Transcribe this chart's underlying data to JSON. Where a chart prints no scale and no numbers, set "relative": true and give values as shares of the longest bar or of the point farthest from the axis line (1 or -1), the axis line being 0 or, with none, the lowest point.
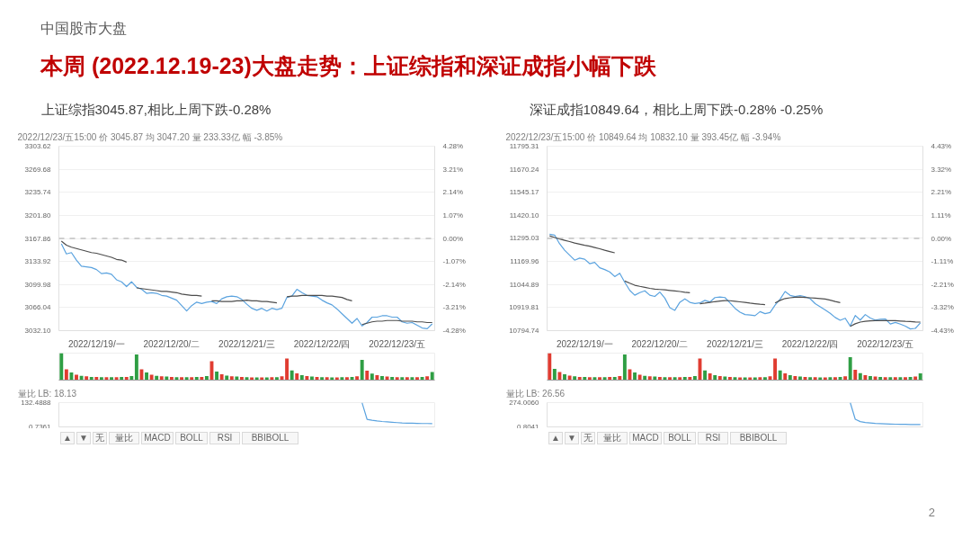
{
  "chart_data": [
    {
      "type": "line",
      "title": "上证综指3045.87,相比上周下跌-0.28%",
      "subtitle": "2022/12/23/五15:00 价 3045.87 均 3047.20 量 233.33亿 幅 -3.85%",
      "annotations": [
        "中国股市大盘",
        "本周 (2022.12.19-23)大盘走势：上证综指和深证成指小幅下跌",
        "2"
      ],
      "categories": [
        null,
        null,
        null,
        null,
        null,
        null,
        null,
        "2022/12/19/一",
        null,
        null,
        null,
        null,
        null,
        null,
        null,
        null,
        null,
        null,
        null,
        null,
        null,
        null,
        "2022/12/20/二",
        null,
        null,
        null,
        null,
        null,
        null,
        null,
        null,
        null,
        null,
        null,
        null,
        null,
        null,
        "2022/12/21/三",
        null,
        null,
        null,
        null,
        null,
        null,
        null,
        null,
        null,
        null,
        null,
        null,
        null,
        null,
        "2022/12/22/四",
        null,
        null,
        null,
        null,
        null,
        null,
        null,
        null,
        null,
        null,
        null,
        null,
        null,
        null,
        "2022/12/23/五",
        null,
        null,
        null,
        null,
        null,
        null,
        null
      ],
      "ylim": [
        3032.1,
        3303.62
      ],
      "yticks": [
        3303.62,
        3269.68,
        3235.74,
        {
          "value": 3201.8,
          "label": "3201.80"
        },
        3167.86,
        3133.92,
        3099.98,
        3066.04,
        {
          "value": 3032.1,
          "label": "3032.10"
        }
      ],
      "y2lim": [
        -4.28,
        4.28
      ],
      "y2ticks": [
        {
          "value": 4.28,
          "label": "4.28%"
        },
        {
          "value": 3.21,
          "label": "3.21%"
        },
        {
          "value": 2.14,
          "label": "2.14%"
        },
        {
          "value": 1.07,
          "label": "1.07%"
        },
        {
          "value": 0,
          "label": "0.00%"
        },
        {
          "value": -1.07,
          "label": "-1.07%"
        },
        {
          "value": -2.14,
          "label": "-2.14%"
        },
        {
          "value": -3.21,
          "label": "-3.21%"
        },
        {
          "value": -4.28,
          "label": "-4.28%"
        }
      ],
      "grid": "y",
      "ref_lines": [
        {
          "axis": "y",
          "value": 3167.86,
          "color": "#a6a6a6",
          "line_style": "dashed"
        }
      ],
      "series": [
        {
          "color": "#5ba3df",
          "values": [
            3160,
            3145,
            3147,
            3136,
            3127,
            3126,
            3125,
            3122,
            3116,
            3117,
            3115,
            3107,
            3104,
            3097,
            3104,
            3096,
            3093,
            3087,
            3088,
            3087,
            3084,
            3083,
            3080,
            3077,
            3069,
            3061,
            3069,
            3074,
            3072,
            3074,
            3075,
            3072,
            3079,
            3082,
            3083,
            3082,
            3078,
            3071,
            3065,
            3062,
            3065,
            3061,
            3065,
            3063,
            3065,
            3081,
            3083,
            3093,
            3088,
            3084,
            3083,
            3082,
            3077,
            3073,
            3070,
            3064,
            3057,
            3050,
            3043,
            3050,
            3039,
            3044,
            3052,
            3052,
            3054,
            3054,
            3052,
            3052,
            3045,
            3043,
            3044,
            3040,
            3036,
            3035,
            3042
          ]
        },
        {
          "color": "#4d4d4d",
          "values": [
            3164,
            3158,
            3155,
            3153,
            3151,
            3149,
            3147,
            3146,
            3144,
            3142,
            3140,
            3137,
            3136,
            3133,
            null,
            3095,
            3094,
            3093,
            3092,
            3091,
            3090,
            3090,
            3089,
            3088,
            3086,
            3085,
            3084,
            3084,
            3083,
            null,
            3076,
            3076,
            3075,
            3075,
            3075,
            3076,
            3076,
            3077,
            3076,
            3076,
            3075,
            3075,
            3074,
            3073,
            null,
            3082,
            3083,
            3083,
            3084,
            3084,
            3084,
            3084,
            3084,
            3083,
            3083,
            3082,
            3081,
            3078,
            3076,
            null,
            3041,
            3043,
            3045,
            3046,
            3046,
            3047,
            3047,
            3047,
            3046,
            3046,
            3046,
            3045,
            3045,
            3044,
            3044
          ]
        }
      ]
    },
    {
      "type": "bar",
      "relative": true,
      "tick_labels": false,
      "categories": [
        null,
        null,
        null,
        null,
        null,
        null,
        null,
        null,
        null,
        null,
        null,
        null,
        null,
        null,
        null,
        null,
        null,
        null,
        null,
        null,
        null,
        null,
        null,
        null,
        null,
        null,
        null,
        null,
        null,
        null,
        null,
        null,
        null,
        null,
        null,
        null,
        null,
        null,
        null,
        null,
        null,
        null,
        null,
        null,
        null,
        null,
        null,
        null,
        null,
        null,
        null,
        null,
        null,
        null,
        null,
        null,
        null,
        null,
        null,
        null,
        null,
        null,
        null,
        null,
        null,
        null,
        null,
        null,
        null,
        null,
        null,
        null,
        null,
        null,
        null
      ],
      "values": [
        1.0,
        0.4,
        0.28,
        0.2,
        0.16,
        0.14,
        0.12,
        0.12,
        0.11,
        0.11,
        0.11,
        0.11,
        0.12,
        0.12,
        0.15,
        0.95,
        0.4,
        0.28,
        0.2,
        0.16,
        0.14,
        0.13,
        0.12,
        0.11,
        0.11,
        0.11,
        0.11,
        0.12,
        0.12,
        0.15,
        0.7,
        0.32,
        0.22,
        0.17,
        0.14,
        0.13,
        0.12,
        0.11,
        0.1,
        0.1,
        0.1,
        0.1,
        0.11,
        0.11,
        0.14,
        0.8,
        0.36,
        0.25,
        0.18,
        0.15,
        0.13,
        0.12,
        0.11,
        0.11,
        0.1,
        0.1,
        0.11,
        0.11,
        0.12,
        0.14,
        0.75,
        0.35,
        0.24,
        0.18,
        0.15,
        0.13,
        0.12,
        0.11,
        0.11,
        0.11,
        0.11,
        0.11,
        0.12,
        0.14,
        0.3
      ],
      "colors": [
        "#2f9e44",
        "#e03c31",
        "#2f9e44",
        "#e03c31",
        "#2f9e44",
        "#e03c31",
        "#2f9e44",
        "#e03c31",
        "#2f9e44",
        "#e03c31",
        "#2f9e44",
        "#e03c31",
        "#2f9e44",
        "#e03c31",
        "#2f9e44",
        "#2f9e44",
        "#e03c31",
        "#2f9e44",
        "#e03c31",
        "#2f9e44",
        "#e03c31",
        "#2f9e44",
        "#e03c31",
        "#2f9e44",
        "#e03c31",
        "#2f9e44",
        "#e03c31",
        "#2f9e44",
        "#e03c31",
        "#2f9e44",
        "#e03c31",
        "#2f9e44",
        "#e03c31",
        "#2f9e44",
        "#e03c31",
        "#2f9e44",
        "#e03c31",
        "#2f9e44",
        "#e03c31",
        "#2f9e44",
        "#e03c31",
        "#2f9e44",
        "#e03c31",
        "#2f9e44",
        "#e03c31",
        "#e03c31",
        "#2f9e44",
        "#e03c31",
        "#2f9e44",
        "#e03c31",
        "#2f9e44",
        "#e03c31",
        "#2f9e44",
        "#e03c31",
        "#2f9e44",
        "#e03c31",
        "#2f9e44",
        "#e03c31",
        "#2f9e44",
        "#e03c31",
        "#2f9e44",
        "#e03c31",
        "#2f9e44",
        "#e03c31",
        "#2f9e44",
        "#e03c31",
        "#2f9e44",
        "#e03c31",
        "#2f9e44",
        "#e03c31",
        "#2f9e44",
        "#e03c31",
        "#2f9e44",
        "#e03c31",
        "#2f9e44"
      ]
    },
    {
      "type": "line",
      "title": "量比 LB: 18.13",
      "annotations": [
        "▲",
        "▼",
        "无",
        "量比",
        "MACD",
        "BOLL",
        "RSI",
        "BBIBOLL"
      ],
      "categories": [
        null,
        null,
        null,
        null,
        null,
        null,
        null,
        null,
        null,
        null,
        null,
        null,
        null,
        null,
        null,
        null,
        null,
        null,
        null,
        null,
        null,
        null,
        null,
        null,
        null,
        null,
        null,
        null,
        null,
        null,
        null,
        null,
        null,
        null,
        null,
        null,
        null,
        null,
        null,
        null,
        null,
        null,
        null,
        null,
        null,
        null,
        null,
        null,
        null,
        null,
        null,
        null,
        null,
        null,
        null,
        null,
        null,
        null,
        null,
        null,
        null,
        null,
        null,
        null,
        null,
        null,
        null,
        null,
        null,
        null,
        null,
        null,
        null,
        null,
        null
      ],
      "ylim": [
        0.7361,
        132.4888
      ],
      "yticks": [
        132.4888,
        0.7361
      ],
      "series": [
        {
          "color": "#5ba3df",
          "values": [
            null,
            null,
            null,
            null,
            null,
            null,
            null,
            null,
            null,
            null,
            null,
            null,
            null,
            null,
            null,
            null,
            null,
            null,
            null,
            null,
            null,
            null,
            null,
            null,
            null,
            null,
            null,
            null,
            null,
            null,
            null,
            null,
            null,
            null,
            null,
            null,
            null,
            null,
            null,
            null,
            null,
            null,
            null,
            null,
            null,
            null,
            null,
            null,
            null,
            null,
            null,
            null,
            null,
            null,
            null,
            null,
            null,
            null,
            null,
            null,
            132,
            42,
            37,
            33,
            30,
            28,
            26,
            24,
            22,
            21,
            21,
            20,
            19,
            19,
            18
          ]
        }
      ]
    },
    {
      "type": "line",
      "title": "深证成指10849.64，相比上周下跌-0.28% -0.25%",
      "subtitle": "2022/12/23/五15:00 价 10849.64 均 10832.10 量 393.45亿 幅 -3.94%",
      "categories": [
        null,
        null,
        null,
        null,
        null,
        null,
        null,
        "2022/12/19/一",
        null,
        null,
        null,
        null,
        null,
        null,
        null,
        null,
        null,
        null,
        null,
        null,
        null,
        null,
        "2022/12/20/二",
        null,
        null,
        null,
        null,
        null,
        null,
        null,
        null,
        null,
        null,
        null,
        null,
        null,
        null,
        "2022/12/21/三",
        null,
        null,
        null,
        null,
        null,
        null,
        null,
        null,
        null,
        null,
        null,
        null,
        null,
        null,
        "2022/12/22/四",
        null,
        null,
        null,
        null,
        null,
        null,
        null,
        null,
        null,
        null,
        null,
        null,
        null,
        null,
        "2022/12/23/五",
        null,
        null,
        null,
        null,
        null,
        null,
        null
      ],
      "ylim": [
        10794.74,
        11795.31
      ],
      "yticks": [
        11795.31,
        11670.24,
        11545.17,
        {
          "value": 11420.1,
          "label": "11420.10"
        },
        11295.03,
        11169.96,
        11044.89,
        10919.81,
        10794.74
      ],
      "y2lim": [
        -4.43,
        4.43
      ],
      "y2ticks": [
        {
          "value": 4.43,
          "label": "4.43%"
        },
        {
          "value": 3.32,
          "label": "3.32%"
        },
        {
          "value": 2.21,
          "label": "2.21%"
        },
        {
          "value": 1.11,
          "label": "1.11%"
        },
        {
          "value": 0,
          "label": "0.00%"
        },
        {
          "value": -1.11,
          "label": "-1.11%"
        },
        {
          "value": -2.21,
          "label": "-2.21%"
        },
        {
          "value": -3.32,
          "label": "-3.32%"
        },
        {
          "value": -4.43,
          "label": "-4.43%"
        }
      ],
      "grid": "y",
      "ref_lines": [
        {
          "axis": "y",
          "value": 11295.03,
          "color": "#a6a6a6",
          "line_style": "dashed"
        }
      ],
      "series": [
        {
          "color": "#5ba3df",
          "values": [
            11318,
            11313,
            11266,
            11231,
            11204,
            11177,
            11188,
            11182,
            11158,
            11165,
            11136,
            11126,
            11113,
            11088,
            11106,
            11057,
            11013,
            10987,
            11001,
            11011,
            10987,
            10980,
            11004,
            10971,
            10919,
            10905,
            10949,
            10967,
            10948,
            10942,
            10945,
            10959,
            10950,
            10974,
            10977,
            10974,
            10945,
            10916,
            10895,
            10882,
            10880,
            10876,
            10898,
            10887,
            10893,
            10933,
            10965,
            11007,
            10986,
            10980,
            10985,
            10979,
            10968,
            10941,
            10924,
            10907,
            10889,
            10866,
            10851,
            10862,
            10820,
            10877,
            10852,
            10882,
            10863,
            10852,
            10856,
            10858,
            10831,
            10839,
            10830,
            10819,
            10804,
            10807,
            10837
          ]
        },
        {
          "color": "#4d4d4d",
          "values": [
            11309,
            11300,
            11292,
            11285,
            11278,
            11270,
            11264,
            11258,
            11253,
            11246,
            11239,
            11231,
            11224,
            11217,
            null,
            11064,
            11052,
            11041,
            11035,
            11030,
            11024,
            11020,
            11018,
            11016,
            11013,
            11010,
            11007,
            11003,
            11000,
            null,
            10941,
            10944,
            10948,
            10952,
            10955,
            10958,
            10957,
            10954,
            10951,
            10948,
            10944,
            10941,
            10938,
            10936,
            null,
            10945,
            10959,
            10969,
            10973,
            10976,
            10977,
            10975,
            10973,
            10971,
            10969,
            10966,
            10960,
            10953,
            10947,
            null,
            10818,
            10832,
            10841,
            10845,
            10848,
            10849,
            10849,
            10849,
            10849,
            10849,
            10847,
            10845,
            10844,
            10842,
            10841
          ]
        }
      ]
    },
    {
      "type": "bar",
      "relative": true,
      "tick_labels": false,
      "categories": [
        null,
        null,
        null,
        null,
        null,
        null,
        null,
        null,
        null,
        null,
        null,
        null,
        null,
        null,
        null,
        null,
        null,
        null,
        null,
        null,
        null,
        null,
        null,
        null,
        null,
        null,
        null,
        null,
        null,
        null,
        null,
        null,
        null,
        null,
        null,
        null,
        null,
        null,
        null,
        null,
        null,
        null,
        null,
        null,
        null,
        null,
        null,
        null,
        null,
        null,
        null,
        null,
        null,
        null,
        null,
        null,
        null,
        null,
        null,
        null,
        null,
        null,
        null,
        null,
        null,
        null,
        null,
        null,
        null,
        null,
        null,
        null,
        null,
        null,
        null
      ],
      "values": [
        1.0,
        0.42,
        0.3,
        0.22,
        0.17,
        0.14,
        0.12,
        0.12,
        0.11,
        0.11,
        0.11,
        0.11,
        0.12,
        0.12,
        0.15,
        0.95,
        0.4,
        0.28,
        0.2,
        0.16,
        0.14,
        0.13,
        0.12,
        0.11,
        0.11,
        0.11,
        0.11,
        0.12,
        0.12,
        0.15,
        0.8,
        0.36,
        0.25,
        0.18,
        0.15,
        0.13,
        0.12,
        0.11,
        0.1,
        0.1,
        0.1,
        0.1,
        0.11,
        0.11,
        0.14,
        0.8,
        0.36,
        0.25,
        0.18,
        0.15,
        0.13,
        0.12,
        0.11,
        0.11,
        0.1,
        0.1,
        0.11,
        0.11,
        0.12,
        0.14,
        0.85,
        0.38,
        0.26,
        0.18,
        0.15,
        0.13,
        0.12,
        0.11,
        0.11,
        0.11,
        0.11,
        0.11,
        0.12,
        0.13,
        0.25
      ],
      "colors": [
        "#e03c31",
        "#2f9e44",
        "#e03c31",
        "#2f9e44",
        "#e03c31",
        "#2f9e44",
        "#e03c31",
        "#2f9e44",
        "#e03c31",
        "#2f9e44",
        "#e03c31",
        "#2f9e44",
        "#e03c31",
        "#2f9e44",
        "#e03c31",
        "#2f9e44",
        "#e03c31",
        "#2f9e44",
        "#e03c31",
        "#2f9e44",
        "#e03c31",
        "#2f9e44",
        "#e03c31",
        "#2f9e44",
        "#e03c31",
        "#2f9e44",
        "#e03c31",
        "#2f9e44",
        "#e03c31",
        "#2f9e44",
        "#e03c31",
        "#2f9e44",
        "#e03c31",
        "#2f9e44",
        "#e03c31",
        "#2f9e44",
        "#e03c31",
        "#2f9e44",
        "#e03c31",
        "#2f9e44",
        "#e03c31",
        "#2f9e44",
        "#e03c31",
        "#2f9e44",
        "#e03c31",
        "#e03c31",
        "#2f9e44",
        "#e03c31",
        "#2f9e44",
        "#e03c31",
        "#2f9e44",
        "#e03c31",
        "#2f9e44",
        "#e03c31",
        "#2f9e44",
        "#e03c31",
        "#2f9e44",
        "#e03c31",
        "#2f9e44",
        "#e03c31",
        "#2f9e44",
        "#e03c31",
        "#2f9e44",
        "#e03c31",
        "#2f9e44",
        "#e03c31",
        "#2f9e44",
        "#e03c31",
        "#2f9e44",
        "#e03c31",
        "#2f9e44",
        "#e03c31",
        "#2f9e44",
        "#e03c31",
        "#2f9e44"
      ]
    },
    {
      "type": "line",
      "title": "量比 LB: 26.56",
      "annotations": [
        "▲",
        "▼",
        "无",
        "量比",
        "MACD",
        "BOLL",
        "RSI",
        "BBIBOLL"
      ],
      "categories": [
        null,
        null,
        null,
        null,
        null,
        null,
        null,
        null,
        null,
        null,
        null,
        null,
        null,
        null,
        null,
        null,
        null,
        null,
        null,
        null,
        null,
        null,
        null,
        null,
        null,
        null,
        null,
        null,
        null,
        null,
        null,
        null,
        null,
        null,
        null,
        null,
        null,
        null,
        null,
        null,
        null,
        null,
        null,
        null,
        null,
        null,
        null,
        null,
        null,
        null,
        null,
        null,
        null,
        null,
        null,
        null,
        null,
        null,
        null,
        null,
        null,
        null,
        null,
        null,
        null,
        null,
        null,
        null,
        null,
        null,
        null,
        null,
        null,
        null,
        null
      ],
      "ylim": [
        0.8041,
        274.006
      ],
      "yticks": [
        {
          "value": 274.006,
          "label": "274.0060"
        },
        0.8041
      ],
      "series": [
        {
          "color": "#5ba3df",
          "values": [
            null,
            null,
            null,
            null,
            null,
            null,
            null,
            null,
            null,
            null,
            null,
            null,
            null,
            null,
            null,
            null,
            null,
            null,
            null,
            null,
            null,
            null,
            null,
            null,
            null,
            null,
            null,
            null,
            null,
            null,
            null,
            null,
            null,
            null,
            null,
            null,
            null,
            null,
            null,
            null,
            null,
            null,
            null,
            null,
            null,
            null,
            null,
            null,
            null,
            null,
            null,
            null,
            null,
            null,
            null,
            null,
            null,
            null,
            null,
            null,
            274,
            87,
            60,
            51,
            45,
            40,
            37,
            35,
            33,
            31,
            30,
            29,
            28,
            27,
            27
          ]
        }
      ]
    }
  ]
}
